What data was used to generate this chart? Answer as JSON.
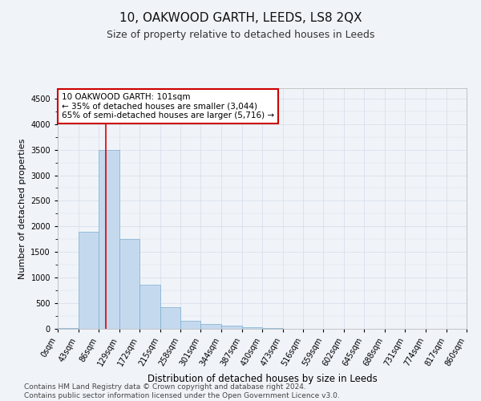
{
  "title": "10, OAKWOOD GARTH, LEEDS, LS8 2QX",
  "subtitle": "Size of property relative to detached houses in Leeds",
  "xlabel": "Distribution of detached houses by size in Leeds",
  "ylabel": "Number of detached properties",
  "bar_color": "#c5d9ee",
  "bar_edge_color": "#7aadce",
  "grid_color": "#d4dce8",
  "background_color": "#f0f4f9",
  "bin_edges": [
    0,
    43,
    86,
    129,
    172,
    215,
    258,
    301,
    344,
    387,
    430,
    473,
    516,
    559,
    602,
    645,
    688,
    731,
    774,
    817,
    860
  ],
  "bin_labels": [
    "0sqm",
    "43sqm",
    "86sqm",
    "129sqm",
    "172sqm",
    "215sqm",
    "258sqm",
    "301sqm",
    "344sqm",
    "387sqm",
    "430sqm",
    "473sqm",
    "516sqm",
    "559sqm",
    "602sqm",
    "645sqm",
    "688sqm",
    "731sqm",
    "774sqm",
    "817sqm",
    "860sqm"
  ],
  "bar_heights": [
    20,
    1900,
    3500,
    1750,
    860,
    430,
    160,
    100,
    60,
    30,
    10,
    5,
    3,
    2,
    1,
    1,
    0,
    0,
    0,
    0
  ],
  "property_size": 101,
  "red_line_color": "#dd0000",
  "annotation_text": "10 OAKWOOD GARTH: 101sqm\n← 35% of detached houses are smaller (3,044)\n65% of semi-detached houses are larger (5,716) →",
  "annotation_box_facecolor": "#ffffff",
  "annotation_box_edgecolor": "#cc0000",
  "ylim": [
    0,
    4700
  ],
  "yticks": [
    0,
    500,
    1000,
    1500,
    2000,
    2500,
    3000,
    3500,
    4000,
    4500
  ],
  "footer_line1": "Contains HM Land Registry data © Crown copyright and database right 2024.",
  "footer_line2": "Contains public sector information licensed under the Open Government Licence v3.0.",
  "title_fontsize": 11,
  "subtitle_fontsize": 9,
  "xlabel_fontsize": 8.5,
  "ylabel_fontsize": 8,
  "tick_fontsize": 7,
  "annotation_fontsize": 7.5,
  "footer_fontsize": 6.5
}
